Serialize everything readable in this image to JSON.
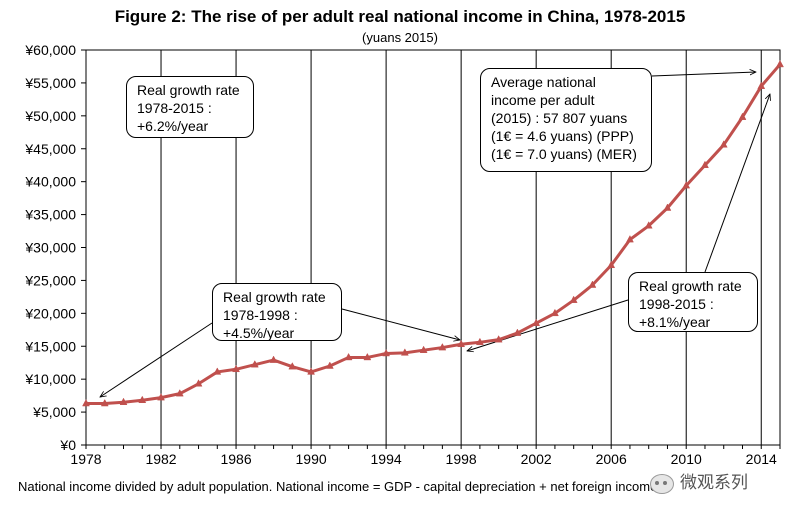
{
  "chart_data": {
    "type": "line",
    "title": "Figure 2: The rise of per adult real national income in China, 1978-2015",
    "subtitle": "(yuans 2015)",
    "x": [
      1978,
      1979,
      1980,
      1981,
      1982,
      1983,
      1984,
      1985,
      1986,
      1987,
      1988,
      1989,
      1990,
      1991,
      1992,
      1993,
      1994,
      1995,
      1996,
      1997,
      1998,
      1999,
      2000,
      2001,
      2002,
      2003,
      2004,
      2005,
      2006,
      2007,
      2008,
      2009,
      2010,
      2011,
      2012,
      2013,
      2014,
      2015
    ],
    "series": [
      {
        "values": [
          6300,
          6300,
          6500,
          6800,
          7200,
          7800,
          9300,
          11100,
          11500,
          12200,
          12900,
          11900,
          11100,
          12000,
          13300,
          13300,
          13900,
          14000,
          14400,
          14800,
          15300,
          15600,
          16000,
          17000,
          18500,
          20000,
          22000,
          24300,
          27300,
          31200,
          33300,
          36000,
          39400,
          42500,
          45600,
          49800,
          54500,
          57807
        ],
        "color": "#c0504d"
      }
    ],
    "ylim": [
      0,
      60000
    ],
    "yticks": [
      0,
      5000,
      10000,
      15000,
      20000,
      25000,
      30000,
      35000,
      40000,
      45000,
      50000,
      55000,
      60000
    ],
    "ytick_labels": [
      "¥0",
      "¥5,000",
      "¥10,000",
      "¥15,000",
      "¥20,000",
      "¥25,000",
      "¥30,000",
      "¥35,000",
      "¥40,000",
      "¥45,000",
      "¥50,000",
      "¥55,000",
      "¥60,000"
    ],
    "xticks": [
      1978,
      1982,
      1986,
      1990,
      1994,
      1998,
      2002,
      2006,
      2010,
      2014
    ],
    "xlim": [
      1978,
      2015
    ],
    "grid": "vertical gridlines at labelled years",
    "legend": "none",
    "annotations": [
      {
        "lines": [
          "Real growth rate",
          "1978-2015 :",
          "+6.2%/year"
        ]
      },
      {
        "lines": [
          "Average national",
          "income per adult",
          "(2015) : 57 807 yuans",
          "(1€ = 4.6 yuans) (PPP)",
          "(1€ = 7.0 yuans) (MER)"
        ]
      },
      {
        "lines": [
          "Real growth rate",
          "1978-1998 :",
          "+4.5%/year"
        ]
      },
      {
        "lines": [
          "Real growth rate",
          "1998-2015 :",
          "+8.1%/year"
        ]
      }
    ]
  },
  "footnote": "National income divided by adult population. National income = GDP - capital depreciation + net foreign income.",
  "watermark": "微观系列"
}
